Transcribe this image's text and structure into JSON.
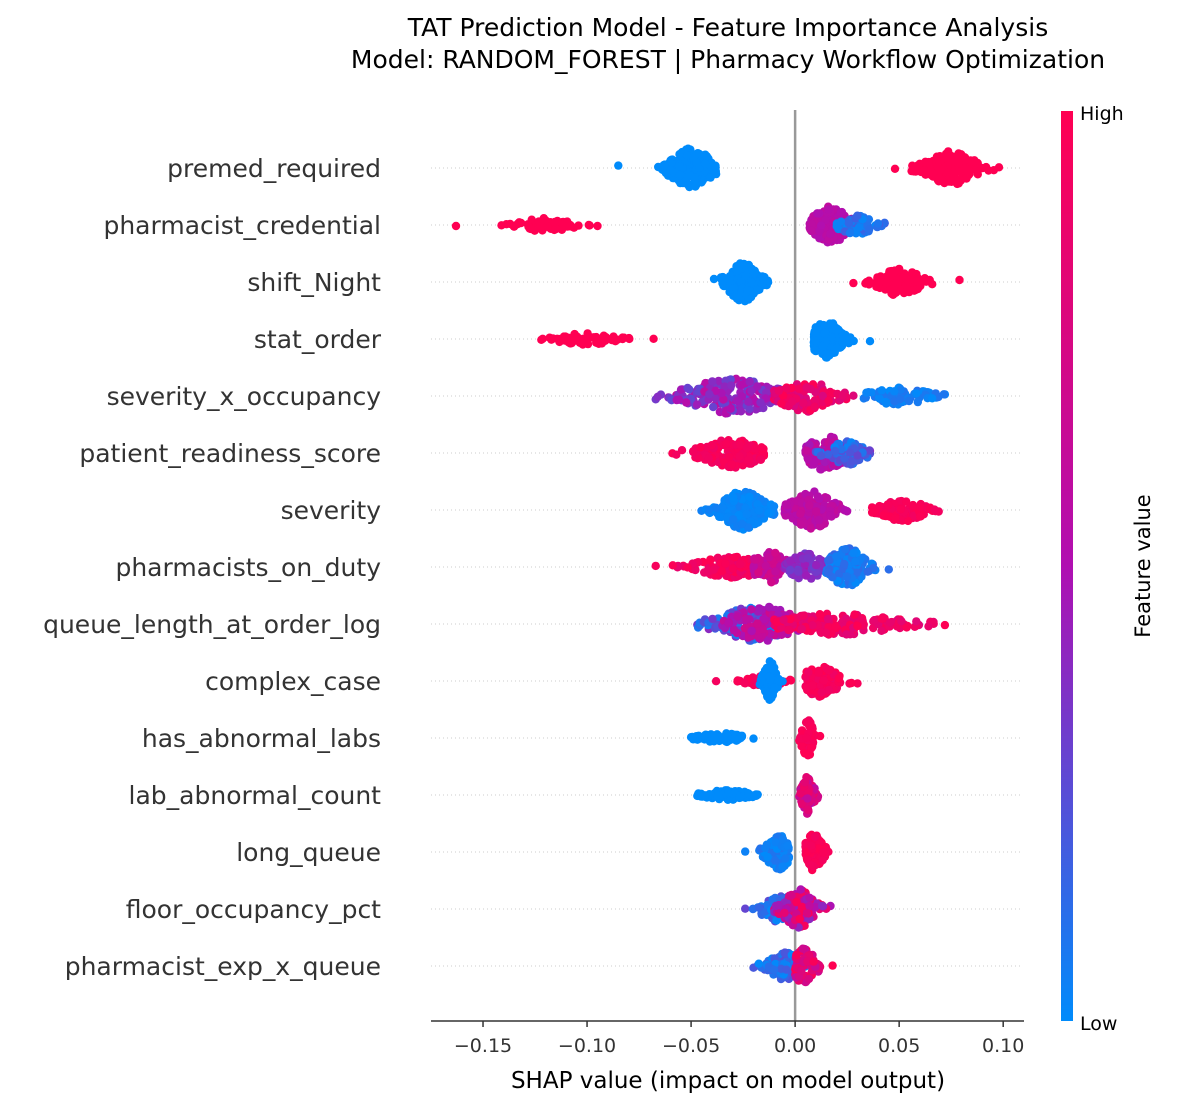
{
  "chart_data": {
    "type": "scatter",
    "subtype": "shap-beeswarm",
    "title_line1": "TAT Prediction Model - Feature Importance Analysis",
    "title_line2": "Model: RANDOM_FOREST | Pharmacy Workflow Optimization",
    "xlabel": "SHAP value (impact on model output)",
    "xlim": [
      -0.175,
      0.11
    ],
    "xticks": [
      -0.15,
      -0.1,
      -0.05,
      0.0,
      0.05,
      0.1
    ],
    "xtick_labels": [
      "−0.15",
      "−0.10",
      "−0.05",
      "0.00",
      "0.05",
      "0.10"
    ],
    "zero_line": true,
    "row_gridlines": "dotted",
    "colorbar": {
      "label": "Feature value",
      "high_label": "High",
      "low_label": "Low",
      "low_color": "#008bfb",
      "mid_color": "#b00fb1",
      "high_color": "#ff0052"
    },
    "features": [
      {
        "name": "premed_required",
        "clusters": [
          {
            "min": -0.085,
            "max": -0.038,
            "peak": -0.05,
            "spread": 0.007,
            "v": [
              0.0,
              0.0
            ],
            "n": 190,
            "h": 1.0
          },
          {
            "min": 0.048,
            "max": 0.098,
            "peak": 0.075,
            "spread": 0.008,
            "v": [
              1.0,
              1.0
            ],
            "n": 140,
            "h": 0.85
          }
        ]
      },
      {
        "name": "pharmacist_credential",
        "clusters": [
          {
            "min": -0.163,
            "max": -0.095,
            "peak": -0.12,
            "spread": 0.009,
            "v": [
              1.0,
              1.0
            ],
            "n": 65,
            "h": 0.35
          },
          {
            "min": 0.007,
            "max": 0.043,
            "peak": 0.017,
            "spread": 0.006,
            "v": [
              0.5,
              0.6
            ],
            "n": 150,
            "h": 0.95
          },
          {
            "min": 0.02,
            "max": 0.043,
            "peak": 0.03,
            "spread": 0.006,
            "v": [
              0.0,
              0.2
            ],
            "n": 55,
            "h": 0.5
          }
        ]
      },
      {
        "name": "shift_Night",
        "clusters": [
          {
            "min": -0.039,
            "max": -0.013,
            "peak": -0.025,
            "spread": 0.005,
            "v": [
              0.0,
              0.0
            ],
            "n": 190,
            "h": 1.0
          },
          {
            "min": 0.028,
            "max": 0.079,
            "peak": 0.05,
            "spread": 0.007,
            "v": [
              1.0,
              1.0
            ],
            "n": 120,
            "h": 0.7
          }
        ]
      },
      {
        "name": "stat_order",
        "clusters": [
          {
            "min": -0.122,
            "max": -0.068,
            "peak": -0.1,
            "spread": 0.01,
            "v": [
              1.0,
              1.0
            ],
            "n": 60,
            "h": 0.3
          },
          {
            "min": 0.009,
            "max": 0.036,
            "peak": 0.015,
            "spread": 0.005,
            "v": [
              0.0,
              0.0
            ],
            "n": 170,
            "h": 0.95
          }
        ]
      },
      {
        "name": "severity_x_occupancy",
        "clusters": [
          {
            "min": -0.067,
            "max": -0.005,
            "peak": -0.03,
            "spread": 0.015,
            "v": [
              0.25,
              0.6
            ],
            "n": 200,
            "h": 0.9
          },
          {
            "min": -0.01,
            "max": 0.028,
            "peak": 0.005,
            "spread": 0.009,
            "v": [
              0.75,
              1.0
            ],
            "n": 120,
            "h": 0.8
          },
          {
            "min": 0.033,
            "max": 0.072,
            "peak": 0.05,
            "spread": 0.01,
            "v": [
              0.0,
              0.1
            ],
            "n": 80,
            "h": 0.45
          }
        ]
      },
      {
        "name": "patient_readiness_score",
        "clusters": [
          {
            "min": -0.059,
            "max": -0.015,
            "peak": -0.03,
            "spread": 0.01,
            "v": [
              0.9,
              1.0
            ],
            "n": 150,
            "h": 0.75
          },
          {
            "min": 0.005,
            "max": 0.036,
            "peak": 0.015,
            "spread": 0.007,
            "v": [
              0.45,
              0.65
            ],
            "n": 120,
            "h": 0.9
          },
          {
            "min": 0.01,
            "max": 0.036,
            "peak": 0.025,
            "spread": 0.006,
            "v": [
              0.0,
              0.3
            ],
            "n": 80,
            "h": 0.6
          }
        ]
      },
      {
        "name": "severity",
        "clusters": [
          {
            "min": -0.045,
            "max": -0.01,
            "peak": -0.025,
            "spread": 0.007,
            "v": [
              0.0,
              0.05
            ],
            "n": 190,
            "h": 1.0
          },
          {
            "min": -0.005,
            "max": 0.025,
            "peak": 0.008,
            "spread": 0.007,
            "v": [
              0.5,
              0.65
            ],
            "n": 160,
            "h": 0.95
          },
          {
            "min": 0.037,
            "max": 0.069,
            "peak": 0.052,
            "spread": 0.007,
            "v": [
              0.92,
              1.0
            ],
            "n": 100,
            "h": 0.6
          }
        ]
      },
      {
        "name": "pharmacists_on_duty",
        "clusters": [
          {
            "min": -0.067,
            "max": -0.015,
            "peak": -0.03,
            "spread": 0.012,
            "v": [
              0.85,
              1.0
            ],
            "n": 130,
            "h": 0.55
          },
          {
            "min": -0.02,
            "max": 0.005,
            "peak": -0.012,
            "spread": 0.006,
            "v": [
              0.55,
              0.75
            ],
            "n": 80,
            "h": 0.8
          },
          {
            "min": -0.005,
            "max": 0.018,
            "peak": 0.005,
            "spread": 0.006,
            "v": [
              0.3,
              0.45
            ],
            "n": 70,
            "h": 0.7
          },
          {
            "min": 0.015,
            "max": 0.045,
            "peak": 0.025,
            "spread": 0.006,
            "v": [
              0.0,
              0.15
            ],
            "n": 150,
            "h": 1.0
          }
        ]
      },
      {
        "name": "queue_length_at_order_log",
        "clusters": [
          {
            "min": -0.047,
            "max": -0.005,
            "peak": -0.02,
            "spread": 0.012,
            "v": [
              0.0,
              0.4
            ],
            "n": 170,
            "h": 0.85
          },
          {
            "min": -0.035,
            "max": 0.015,
            "peak": -0.015,
            "spread": 0.01,
            "v": [
              0.45,
              0.7
            ],
            "n": 100,
            "h": 0.95
          },
          {
            "min": -0.01,
            "max": 0.072,
            "peak": 0.02,
            "spread": 0.02,
            "v": [
              0.8,
              1.0
            ],
            "n": 190,
            "h": 0.55
          }
        ]
      },
      {
        "name": "complex_case",
        "clusters": [
          {
            "min": -0.038,
            "max": -0.002,
            "peak": -0.015,
            "spread": 0.006,
            "v": [
              0.9,
              1.0
            ],
            "n": 50,
            "h": 0.3
          },
          {
            "min": -0.017,
            "max": -0.006,
            "peak": -0.012,
            "spread": 0.002,
            "v": [
              0.0,
              0.0
            ],
            "n": 130,
            "h": 1.0
          },
          {
            "min": 0.005,
            "max": 0.03,
            "peak": 0.012,
            "spread": 0.006,
            "v": [
              0.9,
              1.0
            ],
            "n": 110,
            "h": 0.8
          }
        ]
      },
      {
        "name": "has_abnormal_labs",
        "clusters": [
          {
            "min": -0.05,
            "max": -0.02,
            "peak": -0.035,
            "spread": 0.008,
            "v": [
              0.0,
              0.0
            ],
            "n": 75,
            "h": 0.25
          },
          {
            "min": 0.002,
            "max": 0.012,
            "peak": 0.006,
            "spread": 0.002,
            "v": [
              0.92,
              1.0
            ],
            "n": 90,
            "h": 0.95
          }
        ]
      },
      {
        "name": "lab_abnormal_count",
        "clusters": [
          {
            "min": -0.047,
            "max": -0.018,
            "peak": -0.032,
            "spread": 0.008,
            "v": [
              0.0,
              0.0
            ],
            "n": 75,
            "h": 0.25
          },
          {
            "min": 0.002,
            "max": 0.011,
            "peak": 0.006,
            "spread": 0.002,
            "v": [
              0.55,
              0.9
            ],
            "n": 90,
            "h": 0.95
          }
        ]
      },
      {
        "name": "long_queue",
        "clusters": [
          {
            "min": -0.024,
            "max": -0.003,
            "peak": -0.008,
            "spread": 0.004,
            "v": [
              0.0,
              0.1
            ],
            "n": 110,
            "h": 0.9
          },
          {
            "min": 0.005,
            "max": 0.016,
            "peak": 0.009,
            "spread": 0.003,
            "v": [
              0.92,
              1.0
            ],
            "n": 100,
            "h": 0.95
          }
        ]
      },
      {
        "name": "floor_occupancy_pct",
        "clusters": [
          {
            "min": -0.024,
            "max": 0.0,
            "peak": -0.007,
            "spread": 0.006,
            "v": [
              0.0,
              0.3
            ],
            "n": 100,
            "h": 0.7
          },
          {
            "min": -0.01,
            "max": 0.017,
            "peak": 0.002,
            "spread": 0.005,
            "v": [
              0.4,
              1.0
            ],
            "n": 150,
            "h": 1.0
          }
        ]
      },
      {
        "name": "pharmacist_exp_x_queue",
        "clusters": [
          {
            "min": -0.02,
            "max": 0.005,
            "peak": -0.005,
            "spread": 0.005,
            "v": [
              0.0,
              0.25
            ],
            "n": 130,
            "h": 0.7
          },
          {
            "min": 0.0,
            "max": 0.018,
            "peak": 0.004,
            "spread": 0.004,
            "v": [
              0.6,
              1.0
            ],
            "n": 80,
            "h": 0.9
          }
        ]
      }
    ]
  }
}
